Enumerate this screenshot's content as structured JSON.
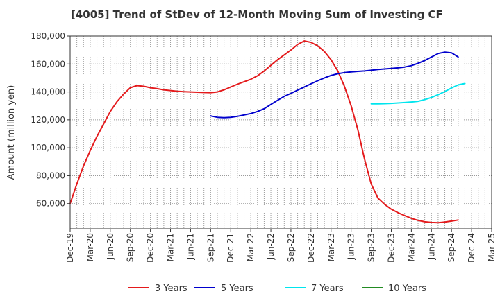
{
  "chart_data": {
    "type": "line",
    "title": "[4005]  Trend of StDev of 12-Month Moving Sum of Investing CF",
    "ylabel": "Amount (million yen)",
    "xlabel": "",
    "ylim": [
      42000,
      180000
    ],
    "yticks": [
      60000,
      80000,
      100000,
      120000,
      140000,
      160000,
      180000
    ],
    "ytick_labels": [
      "60,000",
      "80,000",
      "100,000",
      "120,000",
      "140,000",
      "160,000",
      "180,000"
    ],
    "x_start": "Dec-19",
    "x_end": "Mar-25",
    "xtick_labels": [
      "Dec-19",
      "Mar-20",
      "Jun-20",
      "Sep-20",
      "Dec-20",
      "Mar-21",
      "Jun-21",
      "Sep-21",
      "Dec-21",
      "Mar-22",
      "Jun-22",
      "Sep-22",
      "Dec-22",
      "Mar-23",
      "Jun-23",
      "Sep-23",
      "Dec-23",
      "Mar-24",
      "Jun-24",
      "Sep-24",
      "Dec-24",
      "Mar-25"
    ],
    "grid": true,
    "legend_position": "bottom",
    "series": [
      {
        "name": "3 Years",
        "color": "#e41a1c",
        "values": [
          [
            0,
            60000
          ],
          [
            1,
            74000
          ],
          [
            2,
            87000
          ],
          [
            3,
            98000
          ],
          [
            4,
            108000
          ],
          [
            5,
            117000
          ],
          [
            6,
            126000
          ],
          [
            7,
            133000
          ],
          [
            8,
            138500
          ],
          [
            9,
            143000
          ],
          [
            10,
            144500
          ],
          [
            11,
            144000
          ],
          [
            12,
            143000
          ],
          [
            13,
            142300
          ],
          [
            14,
            141500
          ],
          [
            15,
            141000
          ],
          [
            16,
            140500
          ],
          [
            17,
            140200
          ],
          [
            18,
            140000
          ],
          [
            19,
            139800
          ],
          [
            20,
            139600
          ],
          [
            21,
            139500
          ],
          [
            22,
            140000
          ],
          [
            23,
            141500
          ],
          [
            24,
            143500
          ],
          [
            25,
            145500
          ],
          [
            26,
            147300
          ],
          [
            27,
            149000
          ],
          [
            28,
            151500
          ],
          [
            29,
            155000
          ],
          [
            30,
            159000
          ],
          [
            31,
            163000
          ],
          [
            32,
            166500
          ],
          [
            33,
            170000
          ],
          [
            34,
            174000
          ],
          [
            35,
            176500
          ],
          [
            36,
            175500
          ],
          [
            37,
            173000
          ],
          [
            38,
            169000
          ],
          [
            39,
            163000
          ],
          [
            40,
            155000
          ],
          [
            41,
            144000
          ],
          [
            42,
            130000
          ],
          [
            43,
            113000
          ],
          [
            44,
            92000
          ],
          [
            45,
            74000
          ],
          [
            46,
            64000
          ],
          [
            47,
            59500
          ],
          [
            48,
            56000
          ],
          [
            49,
            53500
          ],
          [
            50,
            51500
          ],
          [
            51,
            49500
          ],
          [
            52,
            48000
          ],
          [
            53,
            47000
          ],
          [
            54,
            46500
          ],
          [
            55,
            46300
          ],
          [
            56,
            46800
          ],
          [
            57,
            47500
          ],
          [
            58,
            48300
          ]
        ]
      },
      {
        "name": "5 Years",
        "color": "#0000cd",
        "values": [
          [
            21,
            122800
          ],
          [
            22,
            121800
          ],
          [
            23,
            121500
          ],
          [
            24,
            121800
          ],
          [
            25,
            122500
          ],
          [
            26,
            123500
          ],
          [
            27,
            124500
          ],
          [
            28,
            126000
          ],
          [
            29,
            128000
          ],
          [
            30,
            131000
          ],
          [
            31,
            134000
          ],
          [
            32,
            136800
          ],
          [
            33,
            139000
          ],
          [
            34,
            141300
          ],
          [
            35,
            143500
          ],
          [
            36,
            145800
          ],
          [
            37,
            148000
          ],
          [
            38,
            150000
          ],
          [
            39,
            151800
          ],
          [
            40,
            153000
          ],
          [
            41,
            153800
          ],
          [
            42,
            154300
          ],
          [
            43,
            154700
          ],
          [
            44,
            155000
          ],
          [
            45,
            155500
          ],
          [
            46,
            156000
          ],
          [
            47,
            156400
          ],
          [
            48,
            156800
          ],
          [
            49,
            157200
          ],
          [
            50,
            157800
          ],
          [
            51,
            158800
          ],
          [
            52,
            160500
          ],
          [
            53,
            162500
          ],
          [
            54,
            165000
          ],
          [
            55,
            167500
          ],
          [
            56,
            168500
          ],
          [
            57,
            168000
          ],
          [
            58,
            165000
          ]
        ]
      },
      {
        "name": "7 Years",
        "color": "#00e5ee",
        "values": [
          [
            45,
            131500
          ],
          [
            46,
            131500
          ],
          [
            47,
            131600
          ],
          [
            48,
            131800
          ],
          [
            49,
            132100
          ],
          [
            50,
            132400
          ],
          [
            51,
            132800
          ],
          [
            52,
            133300
          ],
          [
            53,
            134500
          ],
          [
            54,
            136000
          ],
          [
            55,
            138000
          ],
          [
            56,
            140300
          ],
          [
            57,
            142800
          ],
          [
            58,
            145000
          ],
          [
            59,
            146000
          ]
        ]
      },
      {
        "name": "10 Years",
        "color": "#228b22",
        "values": []
      }
    ]
  }
}
